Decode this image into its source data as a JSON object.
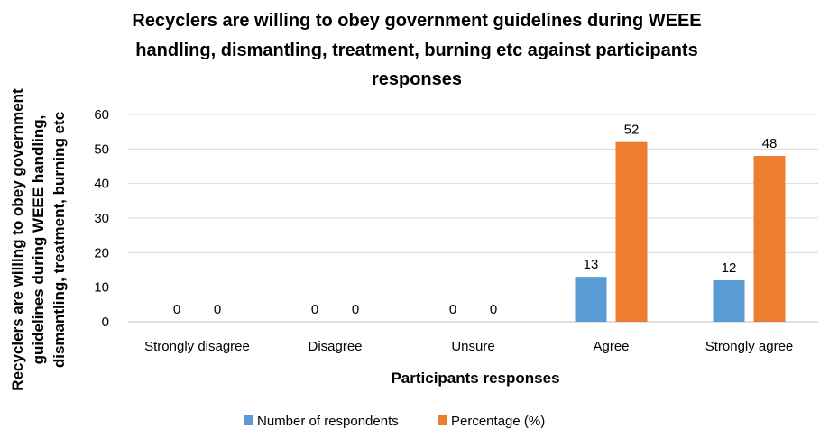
{
  "chart_data": {
    "type": "bar",
    "title_lines": [
      "Recyclers are willing to obey government guidelines during WEEE",
      "handling, dismantling, treatment, burning etc against participants",
      "responses"
    ],
    "ylabel_lines": [
      "Recyclers are willing to obey government",
      "guidelines during WEEE handling,",
      "dismantling, treatment, burning etc"
    ],
    "xlabel": "Participants responses",
    "categories": [
      "Strongly disagree",
      "Disagree",
      "Unsure",
      "Agree",
      "Strongly agree"
    ],
    "series": [
      {
        "name": "Number of respondents",
        "values": [
          0,
          0,
          0,
          13,
          12
        ],
        "color": "#5B9BD5"
      },
      {
        "name": "Percentage (%)",
        "values": [
          0,
          0,
          0,
          52,
          48
        ],
        "color": "#ED7D31"
      }
    ],
    "ylim": [
      0,
      60
    ],
    "yticks": [
      0,
      10,
      20,
      30,
      40,
      50,
      60
    ],
    "grid": true,
    "data_labels": true,
    "legend_position": "bottom"
  }
}
